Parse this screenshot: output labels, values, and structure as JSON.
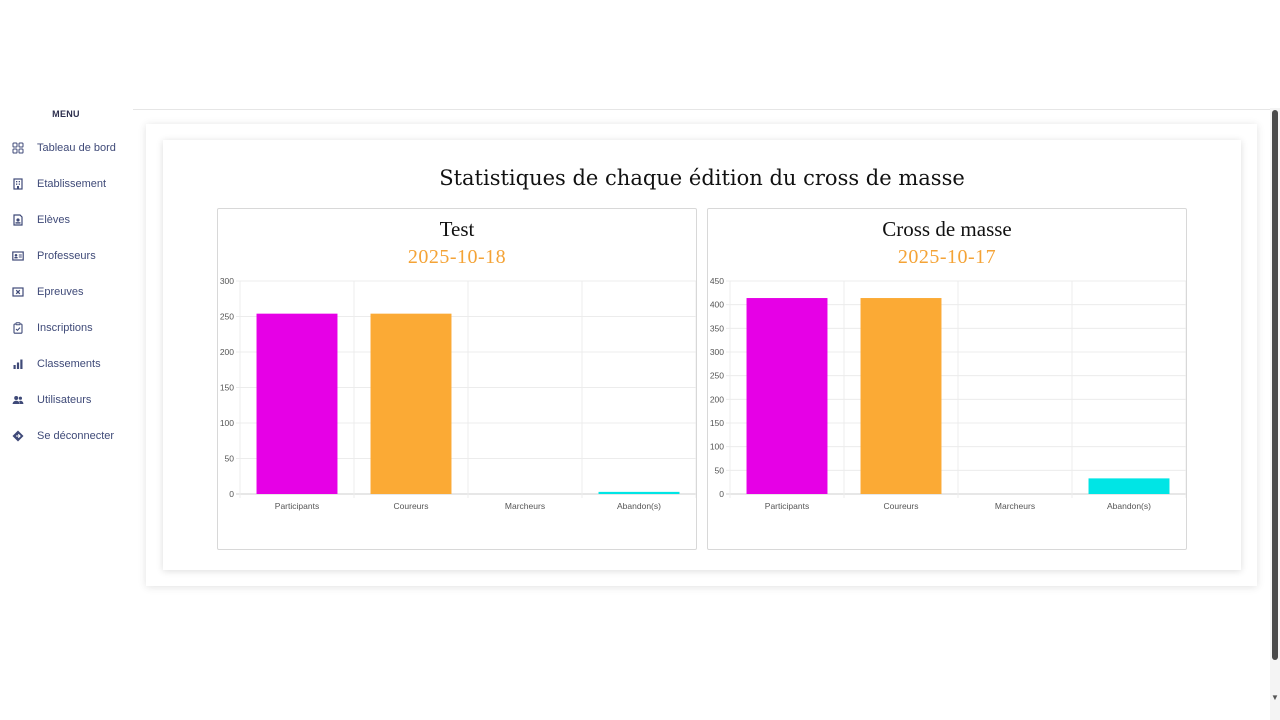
{
  "sidebar": {
    "menu_title": "MENU",
    "items": [
      {
        "label": "Tableau de bord",
        "icon": "grid-icon"
      },
      {
        "label": "Etablissement",
        "icon": "building-icon"
      },
      {
        "label": "Elèves",
        "icon": "student-badge-icon"
      },
      {
        "label": "Professeurs",
        "icon": "id-card-icon"
      },
      {
        "label": "Epreuves",
        "icon": "box-x-icon"
      },
      {
        "label": "Inscriptions",
        "icon": "clipboard-icon"
      },
      {
        "label": "Classements",
        "icon": "bar-chart-icon"
      },
      {
        "label": "Utilisateurs",
        "icon": "users-icon"
      },
      {
        "label": "Se déconnecter",
        "icon": "logout-diamond-icon"
      }
    ]
  },
  "main": {
    "title": "Statistiques de chaque édition du cross de masse"
  },
  "colors": {
    "participants": "#e600e6",
    "coureurs": "#fbaa35",
    "marcheurs": "#2aa1e8",
    "abandons": "#00e5e5",
    "date": "#f4a336"
  },
  "chart_data": [
    {
      "type": "bar",
      "title": "Test",
      "subtitle": "2025-10-18",
      "categories": [
        "Participants",
        "Coureurs",
        "Marcheurs",
        "Abandon(s)"
      ],
      "values": [
        254,
        254,
        0,
        3
      ],
      "ylim": [
        0,
        300
      ],
      "yticks": [
        0,
        50,
        100,
        150,
        200,
        250,
        300
      ],
      "grid": true,
      "legend": "none"
    },
    {
      "type": "bar",
      "title": "Cross de masse",
      "subtitle": "2025-10-17",
      "categories": [
        "Participants",
        "Coureurs",
        "Marcheurs",
        "Abandon(s)"
      ],
      "values": [
        414,
        414,
        0,
        33
      ],
      "ylim": [
        0,
        450
      ],
      "yticks": [
        0,
        50,
        100,
        150,
        200,
        250,
        300,
        350,
        400,
        450
      ],
      "grid": true,
      "legend": "none"
    }
  ]
}
